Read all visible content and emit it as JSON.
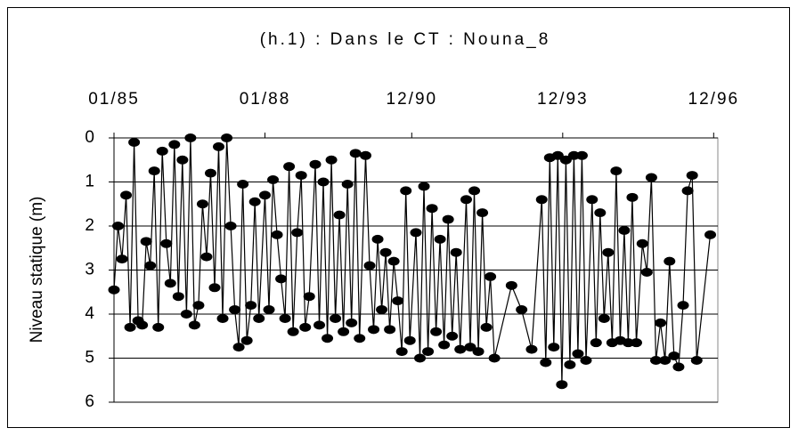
{
  "chart_data": {
    "type": "line",
    "title": "(h.1) : Dans le CT : Nouna_8",
    "y_label": "Niveau statique (m)",
    "color": "#000000",
    "y_inverted": true,
    "grid": true,
    "xlim": [
      1985.0,
      1997.0
    ],
    "xticks": [
      {
        "value": 1985.0,
        "label": "01/85"
      },
      {
        "value": 1988.0,
        "label": "01/88"
      },
      {
        "value": 1990.917,
        "label": "12/90"
      },
      {
        "value": 1993.917,
        "label": "12/93"
      },
      {
        "value": 1996.917,
        "label": "12/96"
      }
    ],
    "ylim": [
      0,
      6
    ],
    "yticks": [
      0,
      1,
      2,
      3,
      4,
      5,
      6
    ],
    "x": [
      1985.0,
      1985.08,
      1985.16,
      1985.24,
      1985.32,
      1985.4,
      1985.48,
      1985.56,
      1985.64,
      1985.72,
      1985.8,
      1985.88,
      1985.96,
      1986.04,
      1986.12,
      1986.2,
      1986.28,
      1986.36,
      1986.44,
      1986.52,
      1986.6,
      1986.68,
      1986.76,
      1986.84,
      1986.92,
      1987.0,
      1987.08,
      1987.16,
      1987.24,
      1987.32,
      1987.4,
      1987.48,
      1987.56,
      1987.64,
      1987.72,
      1987.8,
      1987.88,
      1988.0,
      1988.08,
      1988.16,
      1988.24,
      1988.32,
      1988.4,
      1988.48,
      1988.56,
      1988.64,
      1988.72,
      1988.8,
      1988.88,
      1989.0,
      1989.08,
      1989.16,
      1989.24,
      1989.32,
      1989.4,
      1989.48,
      1989.56,
      1989.64,
      1989.72,
      1989.8,
      1989.88,
      1990.0,
      1990.08,
      1990.16,
      1990.24,
      1990.32,
      1990.4,
      1990.48,
      1990.56,
      1990.64,
      1990.72,
      1990.8,
      1990.88,
      1991.0,
      1991.08,
      1991.16,
      1991.24,
      1991.32,
      1991.4,
      1991.48,
      1991.56,
      1991.64,
      1991.72,
      1991.8,
      1991.88,
      1992.0,
      1992.08,
      1992.16,
      1992.24,
      1992.32,
      1992.4,
      1992.48,
      1992.56,
      1992.9,
      1993.1,
      1993.3,
      1993.5,
      1993.58,
      1993.66,
      1993.74,
      1993.82,
      1993.9,
      1993.98,
      1994.06,
      1994.14,
      1994.22,
      1994.3,
      1994.38,
      1994.5,
      1994.58,
      1994.66,
      1994.74,
      1994.82,
      1994.9,
      1994.98,
      1995.06,
      1995.14,
      1995.22,
      1995.3,
      1995.38,
      1995.5,
      1995.59,
      1995.68,
      1995.77,
      1995.86,
      1995.95,
      1996.04,
      1996.13,
      1996.22,
      1996.31,
      1996.4,
      1996.49,
      1996.58,
      1996.85
    ],
    "values": [
      3.45,
      2.0,
      2.75,
      1.3,
      4.3,
      0.1,
      4.15,
      4.25,
      2.35,
      2.9,
      0.75,
      4.3,
      0.3,
      2.4,
      3.3,
      0.15,
      3.6,
      0.5,
      4.0,
      0.0,
      4.25,
      3.8,
      1.5,
      2.7,
      0.8,
      3.4,
      0.2,
      4.1,
      0.0,
      2.0,
      3.9,
      4.75,
      1.05,
      4.6,
      3.8,
      1.45,
      4.1,
      1.3,
      3.9,
      0.95,
      2.2,
      3.2,
      4.1,
      0.65,
      4.4,
      2.15,
      0.85,
      4.3,
      3.6,
      0.6,
      4.25,
      1.0,
      4.55,
      0.5,
      4.1,
      1.75,
      4.4,
      1.05,
      4.2,
      0.35,
      4.55,
      0.4,
      2.9,
      4.35,
      2.3,
      3.9,
      2.6,
      4.35,
      2.8,
      3.7,
      4.85,
      1.2,
      4.6,
      2.15,
      5.0,
      1.1,
      4.85,
      1.6,
      4.4,
      2.3,
      4.7,
      1.85,
      4.5,
      2.6,
      4.8,
      1.4,
      4.75,
      1.2,
      4.85,
      1.7,
      4.3,
      3.15,
      5.0,
      3.35,
      3.9,
      4.8,
      1.4,
      5.1,
      0.45,
      4.75,
      0.4,
      5.6,
      0.5,
      5.15,
      0.4,
      4.9,
      0.4,
      5.05,
      1.4,
      4.65,
      1.7,
      4.1,
      2.6,
      4.65,
      0.75,
      4.6,
      2.1,
      4.65,
      1.35,
      4.65,
      2.4,
      3.05,
      0.9,
      5.05,
      4.2,
      5.05,
      2.8,
      4.95,
      5.2,
      3.8,
      1.2,
      0.85,
      5.05,
      2.2
    ]
  }
}
